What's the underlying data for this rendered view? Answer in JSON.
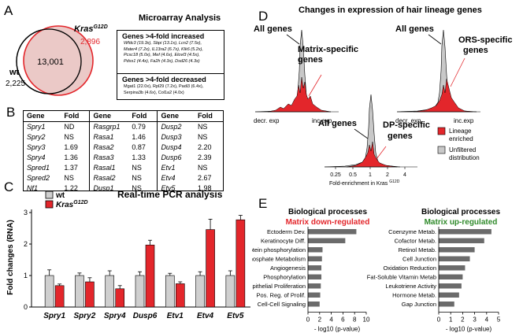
{
  "panels": {
    "A": "A",
    "B": "B",
    "C": "C",
    "D": "D",
    "E": "E"
  },
  "panelA": {
    "title": "Microarray Analysis",
    "venn": {
      "wt_label": "wt",
      "wt_count": "2,225",
      "kras_label": "Kras",
      "kras_sup": "G12D",
      "kras_count": "2,896",
      "overlap_count": "13,001",
      "wt_color": "#000000",
      "kras_color": "#e3262b",
      "overlap_fill": "#e8c0bd"
    },
    "increased": {
      "header": "Genes >4-fold increased",
      "lines": [
        "Wfdc3 (19.3x), Sbpi (13.1x), Lcn2 (7.5x),",
        "Mater4 (7.2x), IL13ra2 (6.7x), Klk6 (5.2x),",
        "Pcsc18 (5.0x), Mef (4.6x), Elovl3 (4.5x),",
        "Pdss1 (4.4x), Fa2h (4.3x), Dsd26 (4.3x)"
      ]
    },
    "decreased": {
      "header": "Genes >4-fold decreased",
      "lines": [
        "Mgat1 (22.0x), Rpl29 (7.2x), Padi3 (6.4x),",
        "Serpina3b (4.6x), Col1a2 (4.0x)"
      ]
    }
  },
  "panelB": {
    "headers": [
      "Gene",
      "Fold",
      "Gene",
      "Fold",
      "Gene",
      "Fold"
    ],
    "rows": [
      [
        "Spry1",
        "ND",
        "Rasgrp1",
        "0.79",
        "Dusp2",
        "NS"
      ],
      [
        "Spry2",
        "NS",
        "Rasa1",
        "1.46",
        "Dusp3",
        "NS"
      ],
      [
        "Spry3",
        "1.69",
        "Rasa2",
        "0.87",
        "Dusp4",
        "2.20"
      ],
      [
        "Spry4",
        "1.36",
        "Rasa3",
        "1.33",
        "Dusp6",
        "2.39"
      ],
      [
        "Spred1",
        "1.37",
        "Rasal1",
        "NS",
        "Etv1",
        "NS"
      ],
      [
        "Spred2",
        "NS",
        "Rasal2",
        "NS",
        "Etv4",
        "2.67"
      ],
      [
        "Nf1",
        "1.22",
        "Dusp1",
        "NS",
        "Etv5",
        "1.98"
      ]
    ]
  },
  "panelC": {
    "title": "Real-time PCR analysis",
    "legend_wt": "wt",
    "legend_kras": "Kras",
    "legend_kras_sup": "G12D",
    "ylabel": "Fold changes (RNA)"
  },
  "chart_data": [
    {
      "type": "bar",
      "title": "Real-time PCR analysis",
      "xlabel": "",
      "ylabel": "Fold changes (RNA)",
      "ylim": [
        0,
        3
      ],
      "yticks": [
        "0",
        "1",
        "2",
        "3"
      ],
      "categories": [
        "Spry1",
        "Spry2",
        "Spry4",
        "Dusp6",
        "Etv1",
        "Etv4",
        "Etv5"
      ],
      "series": [
        {
          "name": "wt",
          "color": "#cfcfcf",
          "values": [
            1.0,
            1.0,
            1.0,
            1.0,
            1.0,
            1.0,
            1.0
          ],
          "errors": [
            0.18,
            0.08,
            0.15,
            0.12,
            0.07,
            0.12,
            0.15
          ]
        },
        {
          "name": "KrasG12D",
          "color": "#e3262b",
          "values": [
            0.68,
            0.8,
            0.58,
            1.97,
            0.74,
            2.46,
            2.77
          ],
          "errors": [
            0.05,
            0.13,
            0.1,
            0.15,
            0.06,
            0.33,
            0.14
          ]
        }
      ],
      "grid": false,
      "legend": "top-left"
    },
    {
      "type": "bar",
      "orientation": "horizontal",
      "title": "Biological processes",
      "subtitle": "Matrix down-regulated",
      "xlabel": "- log10 (p-value)",
      "xlim": [
        0,
        10
      ],
      "xticks": [
        "0",
        "2",
        "4",
        "6",
        "8",
        "10"
      ],
      "categories": [
        "Ectoderm Dev.",
        "Keratinocyte Diff.",
        "Protein phosphorylation",
        "Phosphate Metabolism",
        "Angiogenesis",
        "Phosphorylation",
        "Epithelial Proliferation",
        "Pos. Reg. of Prolif.",
        "Cell-Cell Signaling"
      ],
      "values": [
        8.3,
        6.4,
        2.5,
        2.4,
        2.3,
        2.3,
        2.2,
        2.1,
        2.0
      ],
      "color": "#6b6b6b",
      "subtitle_color": "#e3262b"
    },
    {
      "type": "bar",
      "orientation": "horizontal",
      "title": "Biological processes",
      "subtitle": "Matrix up-regulated",
      "xlabel": "- log10 (p-value)",
      "xlim": [
        0,
        5
      ],
      "xticks": [
        "0",
        "1",
        "2",
        "3",
        "4",
        "5"
      ],
      "categories": [
        "Coenzyme Metab.",
        "Cofactor Metab.",
        "Retinol Metab.",
        "Cell Junction",
        "Oxidation Reduction",
        "Fat-Soluble Vitamin Metab",
        "Leukotriene Activity",
        "Hormone Metab.",
        "Gap Junction"
      ],
      "values": [
        4.4,
        3.8,
        3.0,
        2.6,
        2.2,
        2.0,
        1.9,
        1.7,
        1.3
      ],
      "color": "#6b6b6b",
      "subtitle_color": "#2f8a2a"
    }
  ],
  "panelD": {
    "title": "Changes in expression of hair lineage genes",
    "all_genes": "All genes",
    "matrix_label": "Matrix-specific genes",
    "ors_label": "ORS-specific genes",
    "dp_label": "DP-specific genes",
    "decr": "decr. exp",
    "inc": "inc.exp",
    "xticks": [
      "0.25",
      "0.5",
      "1",
      "2",
      "4"
    ],
    "xlabel": "Fold-enrichment in Kras",
    "xlabel_sup": "G12D",
    "legend_lineage": "Lineage enriched",
    "legend_unfiltered": "Unfiltered distribution",
    "lineage_color": "#e3262b",
    "unfiltered_color": "#c8c8c8"
  }
}
